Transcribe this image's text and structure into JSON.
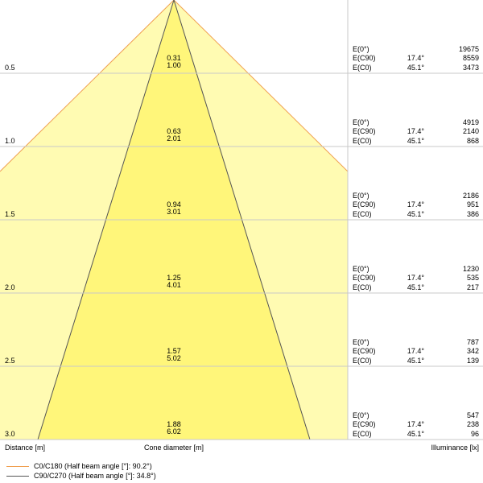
{
  "colors": {
    "outer_cone_fill": "#fffbb2",
    "inner_cone_fill": "#fff67a",
    "outer_line": "#f0a050",
    "inner_line": "#555555",
    "grid": "#c8c8c8"
  },
  "axis": {
    "distance_label": "Distance [m]",
    "cone_label": "Cone diameter [m]",
    "illuminance_label": "Illuminance [lx]"
  },
  "rows": [
    {
      "distance": "0.5",
      "cone_c90": "0.31",
      "cone_c0": "1.00",
      "e0": "19675",
      "ec90_angle": "17.4°",
      "ec90": "8559",
      "ec0_angle": "45.1°",
      "ec0": "3473"
    },
    {
      "distance": "1.0",
      "cone_c90": "0.63",
      "cone_c0": "2.01",
      "e0": "4919",
      "ec90_angle": "17.4°",
      "ec90": "2140",
      "ec0_angle": "45.1°",
      "ec0": "868"
    },
    {
      "distance": "1.5",
      "cone_c90": "0.94",
      "cone_c0": "3.01",
      "e0": "2186",
      "ec90_angle": "17.4°",
      "ec90": "951",
      "ec0_angle": "45.1°",
      "ec0": "386"
    },
    {
      "distance": "2.0",
      "cone_c90": "1.25",
      "cone_c0": "4.01",
      "e0": "1230",
      "ec90_angle": "17.4°",
      "ec90": "535",
      "ec0_angle": "45.1°",
      "ec0": "217"
    },
    {
      "distance": "2.5",
      "cone_c90": "1.57",
      "cone_c0": "5.02",
      "e0": "787",
      "ec90_angle": "17.4°",
      "ec90": "342",
      "ec0_angle": "45.1°",
      "ec0": "139"
    },
    {
      "distance": "3.0",
      "cone_c90": "1.88",
      "cone_c0": "6.02",
      "e0": "547",
      "ec90_angle": "17.4°",
      "ec90": "238",
      "ec0_angle": "45.1°",
      "ec0": "96"
    }
  ],
  "row_labels": {
    "e0": "E(0°)",
    "ec90": "E(C90)",
    "ec0": "E(C0)"
  },
  "legend": [
    {
      "label": "C0/C180 (Half beam angle [°]: 90.2°)",
      "color": "#f0a050"
    },
    {
      "label": "C90/C270 (Half beam angle [°]: 34.8°)",
      "color": "#555555"
    }
  ]
}
